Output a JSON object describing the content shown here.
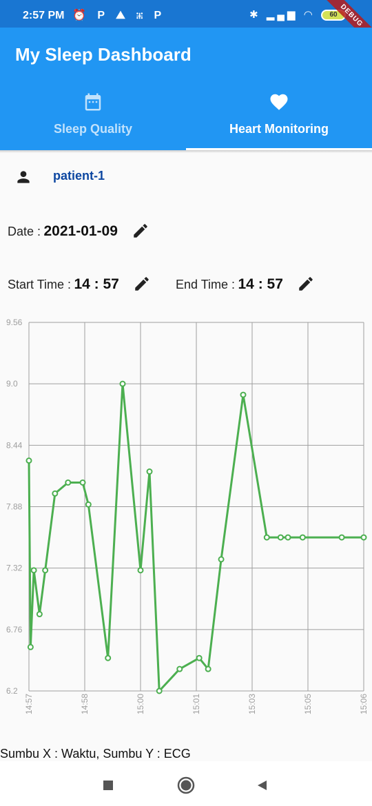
{
  "status_bar": {
    "time": "2:57 PM",
    "left_icons": "⏰ P ⛰ ⁜ P",
    "right_icons": "✱ ▂▄▆ ◠",
    "battery": "60",
    "debug_label": "DEBUG"
  },
  "app": {
    "title": "My Sleep Dashboard",
    "accent_color": "#2196f3",
    "status_color": "#1976d2"
  },
  "tabs": [
    {
      "label": "Sleep Quality",
      "icon": "calendar-icon",
      "selected": false
    },
    {
      "label": "Heart Monitoring",
      "icon": "heart-icon",
      "selected": true
    }
  ],
  "patient": {
    "name": "patient-1",
    "icon": "person-icon"
  },
  "date_field": {
    "label": "Date :",
    "value": "2021-01-09",
    "icon": "edit-icon"
  },
  "time_fields": {
    "start_label": "Start Time :",
    "start_value": "14 : 57",
    "end_label": "End Time :",
    "end_value": "14 : 57"
  },
  "chart_data": {
    "type": "line",
    "color": "#4caf50",
    "ylim": [
      6.2,
      9.56
    ],
    "y_ticks": [
      "6.2",
      "6.76",
      "7.32",
      "7.88",
      "8.44",
      "9.0",
      "9.56"
    ],
    "x_ticks": [
      "14:57",
      "14:58",
      "15:00",
      "15:01",
      "15:03",
      "15:05",
      "15:06"
    ],
    "grid": true,
    "series": [
      {
        "x": [
          0,
          0.02,
          0.06,
          0.13,
          0.2,
          0.32,
          0.48,
          0.66,
          0.73,
          0.97,
          1.15,
          1.37,
          1.48,
          1.6,
          1.85,
          2.09,
          2.2,
          2.36,
          2.63,
          2.92,
          3.09,
          3.18,
          3.36,
          3.84,
          4.11
        ],
        "values": [
          8.3,
          6.6,
          7.3,
          6.9,
          7.3,
          8.0,
          8.1,
          8.1,
          7.9,
          6.5,
          9.0,
          7.3,
          8.2,
          6.2,
          6.4,
          6.5,
          6.4,
          7.4,
          8.9,
          7.6,
          7.6,
          7.6,
          7.6,
          7.6,
          7.6
        ]
      }
    ]
  },
  "caption": "Sumbu X : Waktu, Sumbu Y : ECG",
  "nav": {
    "back": "back-icon",
    "home": "home-icon",
    "recents": "recents-icon"
  }
}
